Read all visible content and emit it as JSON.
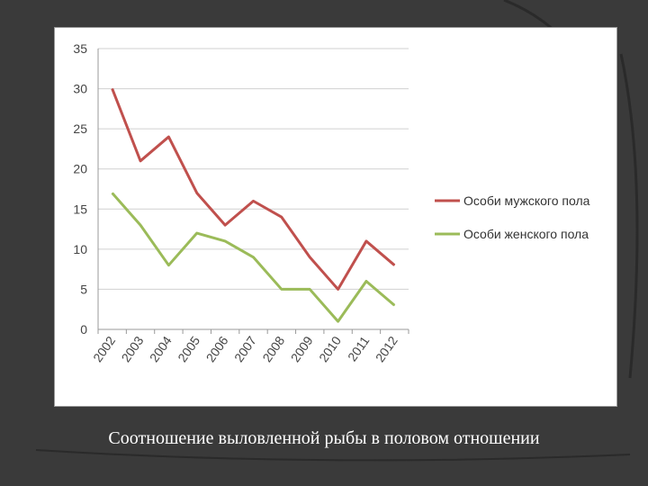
{
  "caption": "Соотношение выловленной рыбы в половом отношении",
  "colors": {
    "background": "#3a3a3a",
    "decor": "#2a2a2a",
    "male": "#c0504d",
    "female": "#9bbb59",
    "grid": "#d0d0d0"
  },
  "chart_data": {
    "type": "line",
    "title": "",
    "xlabel": "",
    "ylabel": "",
    "categories": [
      "2002",
      "2003",
      "2004",
      "2005",
      "2006",
      "2007",
      "2008",
      "2009",
      "2010",
      "2011",
      "2012"
    ],
    "ylim": [
      0,
      35
    ],
    "yticks": [
      0,
      5,
      10,
      15,
      20,
      25,
      30,
      35
    ],
    "grid": true,
    "legend_position": "right",
    "series": [
      {
        "name": "Особи мужского пола",
        "color": "#c0504d",
        "values": [
          30,
          21,
          24,
          17,
          13,
          16,
          14,
          9,
          5,
          11,
          8
        ]
      },
      {
        "name": "Особи женского пола",
        "color": "#9bbb59",
        "values": [
          17,
          13,
          8,
          12,
          11,
          9,
          5,
          5,
          1,
          6,
          3
        ]
      }
    ]
  }
}
